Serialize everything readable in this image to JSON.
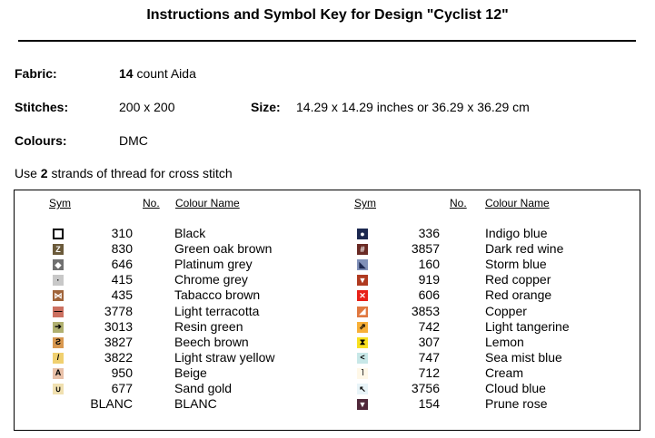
{
  "title": "Instructions and Symbol Key for Design \"Cyclist 12\"",
  "fabric": {
    "label": "Fabric:",
    "count": "14",
    "rest": " count Aida"
  },
  "stitches": {
    "label": "Stitches:",
    "value": "200 x 200"
  },
  "size": {
    "label": "Size:",
    "value": "14.29 x 14.29 inches or 36.29 x 36.29 cm"
  },
  "colours": {
    "label": "Colours:",
    "value": "DMC"
  },
  "strands": {
    "prefix": "Use ",
    "count": "2",
    "suffix": " strands of thread for cross stitch"
  },
  "table": {
    "headers": {
      "sym": "Sym",
      "no": "No.",
      "name": "Colour Name"
    },
    "left": [
      {
        "no": "310",
        "name": "Black",
        "glyph": "",
        "bg": "#ffffff",
        "fg": "#000000",
        "border": "#000000",
        "icon": "hollow-square-icon"
      },
      {
        "no": "830",
        "name": "Green oak brown",
        "glyph": "Z",
        "bg": "#6b5a3a",
        "fg": "#ffffff",
        "border": "#6b5a3a",
        "icon": "letter-z-icon"
      },
      {
        "no": "646",
        "name": "Platinum grey",
        "glyph": "◆",
        "bg": "#707070",
        "fg": "#ffffff",
        "border": "#707070",
        "icon": "diamond-icon"
      },
      {
        "no": "415",
        "name": "Chrome grey",
        "glyph": "·",
        "bg": "#c8c8c8",
        "fg": "#000000",
        "border": "#c8c8c8",
        "icon": "dot-icon"
      },
      {
        "no": "435",
        "name": "Tabacco brown",
        "glyph": "⋈",
        "bg": "#a0643a",
        "fg": "#ffffff",
        "border": "#a0643a",
        "icon": "bowtie-icon"
      },
      {
        "no": "3778",
        "name": "Light terracotta",
        "glyph": "—",
        "bg": "#cc7060",
        "fg": "#000000",
        "border": "#cc7060",
        "icon": "dash-icon"
      },
      {
        "no": "3013",
        "name": "Resin green",
        "glyph": "➔",
        "bg": "#b0b070",
        "fg": "#000000",
        "border": "#b0b070",
        "icon": "arrow-right-icon"
      },
      {
        "no": "3827",
        "name": "Beech brown",
        "glyph": "Ƨ",
        "bg": "#d89850",
        "fg": "#000000",
        "border": "#d89850",
        "icon": "reverse-s-icon"
      },
      {
        "no": "3822",
        "name": "Light straw yellow",
        "glyph": "/",
        "bg": "#f0d070",
        "fg": "#000000",
        "border": "#f0d070",
        "icon": "slash-icon"
      },
      {
        "no": "950",
        "name": "Beige",
        "glyph": "A",
        "bg": "#e8c0a8",
        "fg": "#000000",
        "border": "#e8c0a8",
        "icon": "letter-a-icon"
      },
      {
        "no": "677",
        "name": "Sand gold",
        "glyph": "∪",
        "bg": "#f0e0b0",
        "fg": "#000000",
        "border": "#f0e0b0",
        "icon": "cup-icon"
      },
      {
        "no": "BLANC",
        "name": "BLANC",
        "glyph": "",
        "bg": "#ffffff",
        "fg": "#000000",
        "border": "#ffffff",
        "icon": "blank-icon"
      }
    ],
    "right": [
      {
        "no": "336",
        "name": "Indigo blue",
        "glyph": "●",
        "bg": "#1c2850",
        "fg": "#ffffff",
        "border": "#1c2850",
        "icon": "circle-icon"
      },
      {
        "no": "3857",
        "name": "Dark red wine",
        "glyph": "#",
        "bg": "#6a2a24",
        "fg": "#ffffff",
        "border": "#6a2a24",
        "icon": "hash-icon"
      },
      {
        "no": "160",
        "name": "Storm blue",
        "glyph": "◣",
        "bg": "#8090b8",
        "fg": "#1c2850",
        "border": "#8090b8",
        "icon": "triangle-corner-icon"
      },
      {
        "no": "919",
        "name": "Red copper",
        "glyph": "▼",
        "bg": "#b03a20",
        "fg": "#ffffff",
        "border": "#b03a20",
        "icon": "triangle-down-icon"
      },
      {
        "no": "606",
        "name": "Red orange",
        "glyph": "✕",
        "bg": "#e82018",
        "fg": "#ffffff",
        "border": "#e82018",
        "icon": "cross-icon"
      },
      {
        "no": "3853",
        "name": "Copper",
        "glyph": "◢",
        "bg": "#e07840",
        "fg": "#ffffff",
        "border": "#e07840",
        "icon": "triangle-corner-icon"
      },
      {
        "no": "742",
        "name": "Light tangerine",
        "glyph": "⇗",
        "bg": "#f8b038",
        "fg": "#000000",
        "border": "#f8b038",
        "icon": "double-arrow-icon"
      },
      {
        "no": "307",
        "name": "Lemon",
        "glyph": "⧗",
        "bg": "#f8e020",
        "fg": "#000000",
        "border": "#f8e020",
        "icon": "hourglass-icon"
      },
      {
        "no": "747",
        "name": "Sea mist blue",
        "glyph": "<",
        "bg": "#c8e8e8",
        "fg": "#000000",
        "border": "#c8e8e8",
        "icon": "chevron-left-icon"
      },
      {
        "no": "712",
        "name": "Cream",
        "glyph": "˥",
        "bg": "#fff8e8",
        "fg": "#000000",
        "border": "#fff8e8",
        "icon": "corner-icon"
      },
      {
        "no": "3756",
        "name": "Cloud blue",
        "glyph": "↖",
        "bg": "#e8f4f8",
        "fg": "#000000",
        "border": "#e8f4f8",
        "icon": "arrow-up-left-icon"
      },
      {
        "no": "154",
        "name": "Prune rose",
        "glyph": "▼",
        "bg": "#50283a",
        "fg": "#ffffff",
        "border": "#50283a",
        "icon": "triangle-down-icon"
      }
    ]
  }
}
